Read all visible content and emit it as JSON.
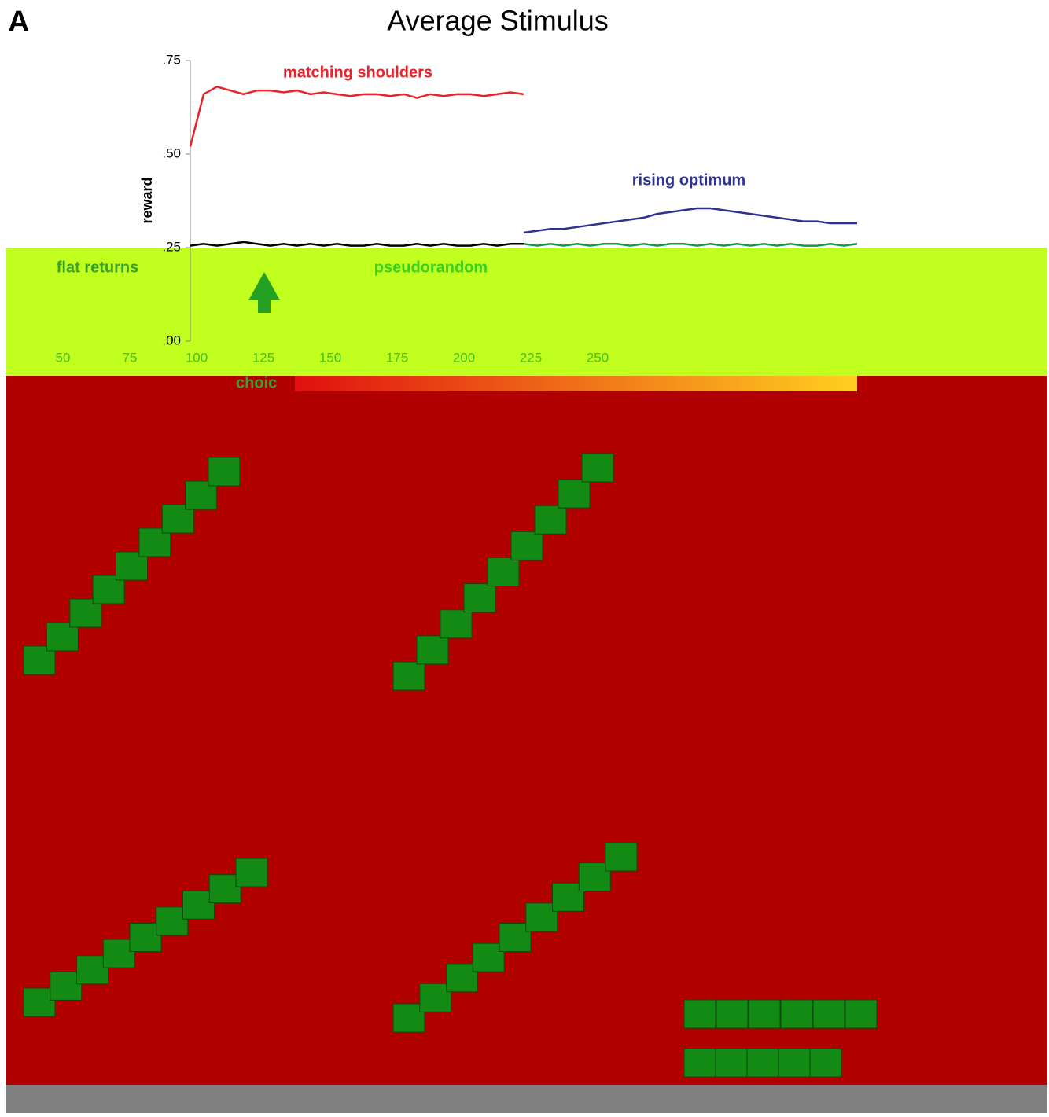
{
  "chart_data": {
    "type": "line",
    "panel_label": "A",
    "title": "Average Stimulus",
    "y_label": "reward",
    "annotations": [
      "matching shoulders",
      "rising optimum",
      "flat returns",
      "pseudorandom",
      "choic"
    ],
    "x": [
      0,
      5,
      10,
      15,
      20,
      25,
      30,
      35,
      40,
      45,
      50,
      55,
      60,
      65,
      70,
      75,
      80,
      85,
      90,
      95,
      100,
      105,
      110,
      115,
      120,
      125,
      130,
      135,
      140,
      145,
      150,
      155,
      160,
      165,
      170,
      175,
      180,
      185,
      190,
      195,
      200,
      205,
      210,
      215,
      220,
      225,
      230,
      235,
      240,
      245,
      250
    ],
    "xlim": [
      0,
      250
    ],
    "ylim": [
      0,
      0.75
    ],
    "yticks": [
      {
        "value": 0.75,
        "label": ".75"
      },
      {
        "value": 0.5,
        "label": ".50"
      },
      {
        "value": 0.25,
        "label": ".25"
      },
      {
        "value": 0,
        "label": ".00"
      }
    ],
    "band_xticks": [
      50,
      75,
      100,
      125,
      150,
      175,
      200,
      225,
      250
    ],
    "series": [
      {
        "name": "matching shoulders",
        "color": "#e8232a",
        "values": [
          0.52,
          0.66,
          0.68,
          0.67,
          0.66,
          0.67,
          0.67,
          0.665,
          0.67,
          0.66,
          0.665,
          0.66,
          0.655,
          0.66,
          0.66,
          0.655,
          0.66,
          0.65,
          0.66,
          0.655,
          0.66,
          0.66,
          0.655,
          0.66,
          0.665,
          0.66,
          null,
          null,
          null,
          null,
          null,
          null,
          null,
          null,
          null,
          null,
          null,
          null,
          null,
          null,
          null,
          null,
          null,
          null,
          null,
          null,
          null,
          null,
          null,
          null,
          null
        ]
      },
      {
        "name": "flat returns",
        "color": "#000000",
        "values": [
          0.255,
          0.26,
          0.255,
          0.26,
          0.265,
          0.26,
          0.255,
          0.26,
          0.255,
          0.26,
          0.255,
          0.26,
          0.255,
          0.255,
          0.26,
          0.255,
          0.255,
          0.26,
          0.255,
          0.26,
          0.255,
          0.255,
          0.26,
          0.255,
          0.26,
          0.26,
          null,
          null,
          null,
          null,
          null,
          null,
          null,
          null,
          null,
          null,
          null,
          null,
          null,
          null,
          null,
          null,
          null,
          null,
          null,
          null,
          null,
          null,
          null,
          null,
          null
        ]
      },
      {
        "name": "rising optimum",
        "color": "#2e3192",
        "values": [
          null,
          null,
          null,
          null,
          null,
          null,
          null,
          null,
          null,
          null,
          null,
          null,
          null,
          null,
          null,
          null,
          null,
          null,
          null,
          null,
          null,
          null,
          null,
          null,
          null,
          0.29,
          0.295,
          0.3,
          0.3,
          0.305,
          0.31,
          0.315,
          0.32,
          0.325,
          0.33,
          0.34,
          0.345,
          0.35,
          0.355,
          0.355,
          0.35,
          0.345,
          0.34,
          0.335,
          0.33,
          0.325,
          0.32,
          0.32,
          0.315,
          0.315,
          0.315
        ]
      },
      {
        "name": "pseudorandom",
        "color": "#1a9641",
        "values": [
          null,
          null,
          null,
          null,
          null,
          null,
          null,
          null,
          null,
          null,
          null,
          null,
          null,
          null,
          null,
          null,
          null,
          null,
          null,
          null,
          null,
          null,
          null,
          null,
          null,
          0.26,
          0.255,
          0.26,
          0.255,
          0.26,
          0.255,
          0.26,
          0.26,
          0.255,
          0.26,
          0.255,
          0.26,
          0.26,
          0.255,
          0.26,
          0.255,
          0.26,
          0.255,
          0.26,
          0.255,
          0.26,
          0.255,
          0.255,
          0.26,
          0.255,
          0.26
        ]
      }
    ]
  }
}
